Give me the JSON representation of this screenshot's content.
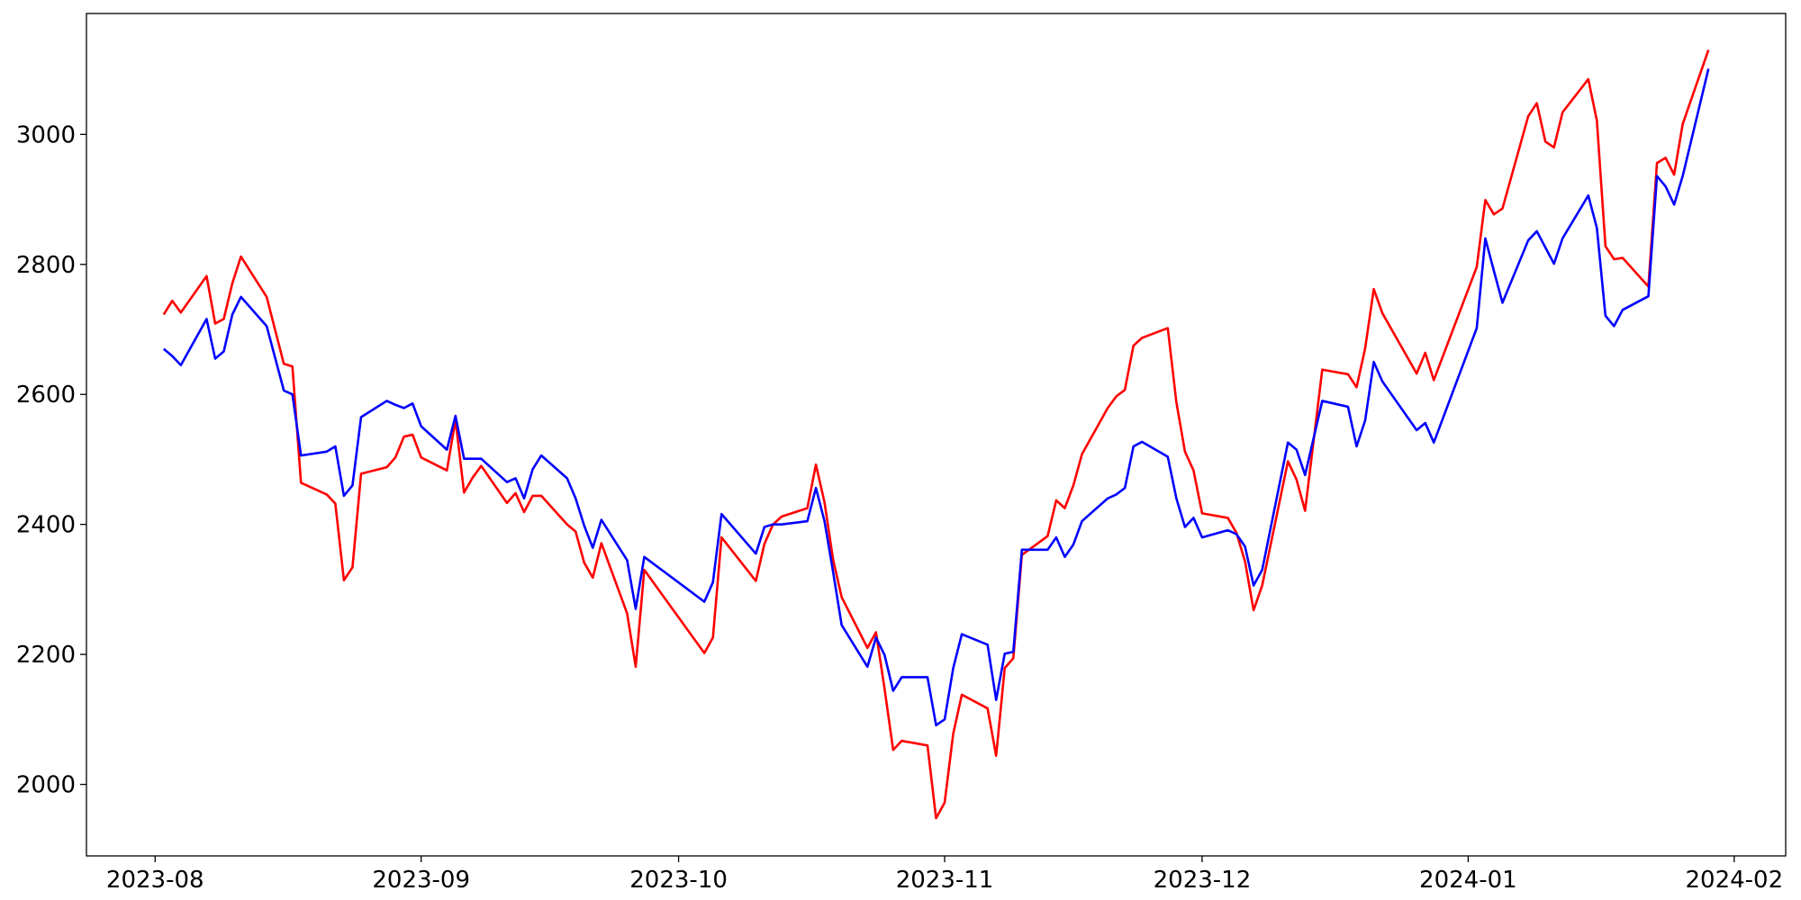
{
  "chart_data": {
    "type": "line",
    "x": [
      "2023-08-02",
      "2023-08-03",
      "2023-08-04",
      "2023-08-07",
      "2023-08-08",
      "2023-08-09",
      "2023-08-10",
      "2023-08-11",
      "2023-08-14",
      "2023-08-16",
      "2023-08-17",
      "2023-08-18",
      "2023-08-21",
      "2023-08-22",
      "2023-08-23",
      "2023-08-24",
      "2023-08-25",
      "2023-08-28",
      "2023-08-29",
      "2023-08-30",
      "2023-08-31",
      "2023-09-01",
      "2023-09-04",
      "2023-09-05",
      "2023-09-06",
      "2023-09-07",
      "2023-09-08",
      "2023-09-11",
      "2023-09-12",
      "2023-09-13",
      "2023-09-14",
      "2023-09-15",
      "2023-09-18",
      "2023-09-19",
      "2023-09-20",
      "2023-09-21",
      "2023-09-22",
      "2023-09-25",
      "2023-09-26",
      "2023-09-27",
      "2023-10-04",
      "2023-10-05",
      "2023-10-06",
      "2023-10-10",
      "2023-10-11",
      "2023-10-12",
      "2023-10-13",
      "2023-10-16",
      "2023-10-17",
      "2023-10-18",
      "2023-10-19",
      "2023-10-20",
      "2023-10-23",
      "2023-10-24",
      "2023-10-25",
      "2023-10-26",
      "2023-10-27",
      "2023-10-30",
      "2023-10-31",
      "2023-11-01",
      "2023-11-02",
      "2023-11-03",
      "2023-11-06",
      "2023-11-07",
      "2023-11-08",
      "2023-11-09",
      "2023-11-10",
      "2023-11-13",
      "2023-11-14",
      "2023-11-15",
      "2023-11-16",
      "2023-11-17",
      "2023-11-20",
      "2023-11-21",
      "2023-11-22",
      "2023-11-23",
      "2023-11-24",
      "2023-11-27",
      "2023-11-28",
      "2023-11-29",
      "2023-11-30",
      "2023-12-01",
      "2023-12-04",
      "2023-12-05",
      "2023-12-06",
      "2023-12-07",
      "2023-12-08",
      "2023-12-11",
      "2023-12-12",
      "2023-12-13",
      "2023-12-15",
      "2023-12-18",
      "2023-12-19",
      "2023-12-20",
      "2023-12-21",
      "2023-12-22",
      "2023-12-26",
      "2023-12-27",
      "2023-12-28",
      "2024-01-02",
      "2024-01-03",
      "2024-01-04",
      "2024-01-05",
      "2024-01-08",
      "2024-01-09",
      "2024-01-10",
      "2024-01-11",
      "2024-01-12",
      "2024-01-15",
      "2024-01-16",
      "2024-01-17",
      "2024-01-18",
      "2024-01-19",
      "2024-01-22",
      "2024-01-23",
      "2024-01-24",
      "2024-01-25",
      "2024-01-26",
      "2024-01-29"
    ],
    "series": [
      {
        "color": "#ff0000",
        "values": [
          2723,
          2744,
          2726,
          2782,
          2709,
          2716,
          2771,
          2812,
          2750,
          2647,
          2643,
          2464,
          2446,
          2432,
          2314,
          2334,
          2478,
          2488,
          2503,
          2535,
          2538,
          2503,
          2483,
          2561,
          2449,
          2472,
          2490,
          2433,
          2448,
          2419,
          2444,
          2444,
          2400,
          2389,
          2341,
          2318,
          2371,
          2263,
          2181,
          2330,
          2202,
          2226,
          2380,
          2313,
          2370,
          2400,
          2412,
          2425,
          2492,
          2434,
          2346,
          2288,
          2210,
          2234,
          2147,
          2053,
          2067,
          2060,
          1948,
          1972,
          2078,
          2138,
          2117,
          2044,
          2179,
          2194,
          2353,
          2382,
          2437,
          2425,
          2460,
          2508,
          2579,
          2597,
          2607,
          2675,
          2687,
          2702,
          2588,
          2512,
          2483,
          2417,
          2410,
          2387,
          2343,
          2268,
          2306,
          2497,
          2469,
          2421,
          2638,
          2631,
          2611,
          2671,
          2762,
          2725,
          2632,
          2664,
          2622,
          2796,
          2899,
          2877,
          2886,
          3028,
          3048,
          2989,
          2980,
          3034,
          3085,
          3021,
          2828,
          2808,
          2810,
          2766,
          2956,
          2964,
          2938,
          3016,
          3130
        ]
      },
      {
        "color": "#0000ff",
        "values": [
          2670,
          2659,
          2645,
          2716,
          2655,
          2666,
          2723,
          2750,
          2705,
          2606,
          2600,
          2506,
          2512,
          2520,
          2444,
          2460,
          2565,
          2590,
          2584,
          2579,
          2586,
          2551,
          2515,
          2567,
          2501,
          2501,
          2501,
          2465,
          2471,
          2440,
          2485,
          2506,
          2471,
          2440,
          2398,
          2364,
          2407,
          2345,
          2270,
          2350,
          2281,
          2311,
          2416,
          2355,
          2396,
          2400,
          2400,
          2405,
          2456,
          2405,
          2327,
          2245,
          2181,
          2226,
          2199,
          2144,
          2165,
          2165,
          2091,
          2100,
          2179,
          2231,
          2215,
          2130,
          2201,
          2204,
          2361,
          2361,
          2380,
          2350,
          2369,
          2405,
          2440,
          2446,
          2456,
          2520,
          2527,
          2504,
          2440,
          2396,
          2410,
          2380,
          2391,
          2385,
          2366,
          2306,
          2330,
          2526,
          2515,
          2476,
          2590,
          2581,
          2520,
          2560,
          2650,
          2620,
          2545,
          2556,
          2526,
          2702,
          2840,
          2790,
          2741,
          2837,
          2851,
          2826,
          2801,
          2840,
          2906,
          2856,
          2721,
          2705,
          2730,
          2751,
          2936,
          2920,
          2892,
          2936,
          3101
        ]
      }
    ],
    "xlim": [
      "2023-07-24",
      "2024-02-07"
    ],
    "xticks": [
      {
        "value": "2023-08-01",
        "label": "2023-08"
      },
      {
        "value": "2023-09-01",
        "label": "2023-09"
      },
      {
        "value": "2023-10-01",
        "label": "2023-10"
      },
      {
        "value": "2023-11-01",
        "label": "2023-11"
      },
      {
        "value": "2023-12-01",
        "label": "2023-12"
      },
      {
        "value": "2024-01-01",
        "label": "2024-01"
      },
      {
        "value": "2024-02-01",
        "label": "2024-02"
      }
    ],
    "ylim": [
      1890,
      3186
    ],
    "yticks": [
      2000,
      2200,
      2400,
      2600,
      2800,
      3000
    ],
    "grid": false
  }
}
